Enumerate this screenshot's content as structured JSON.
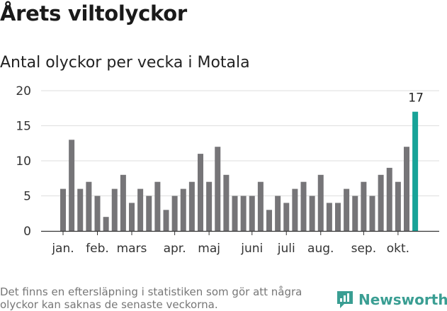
{
  "title": "Årets viltolyckor",
  "subtitle": "Antal olyckor per vecka i Motala",
  "footnote": "Det finns en eftersläpning i statistiken som gör att några olyckor kan saknas de senaste veckorna.",
  "brand": {
    "name": "Newsworthy",
    "icon": "newsworthy-logo-icon",
    "color": "#3a9e93"
  },
  "chart_data": {
    "type": "bar",
    "title": "Antal olyckor per vecka i Motala",
    "xlabel": "",
    "ylabel": "",
    "ylim": [
      0,
      20
    ],
    "yticks": [
      "0",
      "5",
      "10",
      "15",
      "20"
    ],
    "grid": true,
    "legend": "none",
    "colors": {
      "bar": "#767578",
      "highlight": "#17a398"
    },
    "month_labels": [
      "jan.",
      "feb.",
      "mars",
      "apr.",
      "maj",
      "juni",
      "juli",
      "aug.",
      "sep.",
      "okt."
    ],
    "month_start_index": [
      0,
      4,
      8,
      13,
      17,
      22,
      26,
      30,
      35,
      39
    ],
    "values": [
      6,
      13,
      6,
      7,
      5,
      2,
      6,
      8,
      4,
      6,
      5,
      7,
      3,
      5,
      6,
      7,
      11,
      7,
      12,
      8,
      5,
      5,
      5,
      7,
      3,
      5,
      4,
      6,
      7,
      5,
      8,
      4,
      4,
      6,
      5,
      7,
      5,
      8,
      9,
      7,
      12,
      17
    ],
    "highlight_index": 41,
    "highlight_label": "17"
  }
}
